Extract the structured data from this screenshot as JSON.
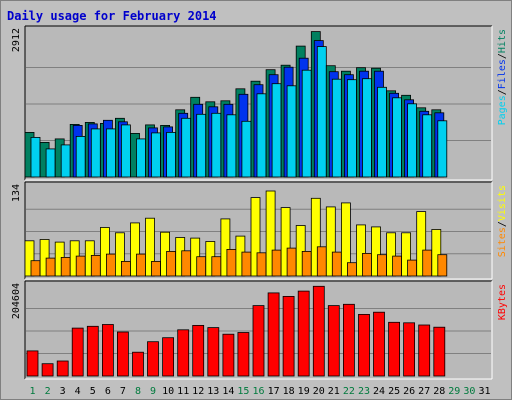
{
  "chart_data": {
    "type": "bar",
    "title": "Daily usage for February 2014",
    "colors": {
      "background": "#c0c0c0",
      "panel": "#b9b9b9",
      "title": "#0000cc",
      "pages": "#00d0f0",
      "files": "#0033ee",
      "hits": "#008060",
      "visits": "#ffff00",
      "sites": "#ff8800",
      "kbytes": "#ff0000",
      "weekend_day": "#007a3d",
      "weekday": "#000000"
    },
    "x": [
      "1",
      "2",
      "3",
      "4",
      "5",
      "6",
      "7",
      "8",
      "9",
      "10",
      "11",
      "12",
      "13",
      "14",
      "15",
      "16",
      "17",
      "18",
      "19",
      "20",
      "21",
      "22",
      "23",
      "24",
      "25",
      "26",
      "27",
      "28",
      "29",
      "30",
      "31"
    ],
    "weekend_days": [
      "1",
      "2",
      "8",
      "9",
      "15",
      "16",
      "22",
      "23",
      "29",
      "30"
    ],
    "panels": [
      {
        "max_label": "2912",
        "ylim": [
          0,
          2912
        ],
        "legend": [
          "Pages",
          "Files",
          "Hits"
        ],
        "series": [
          {
            "name": "Hits",
            "color": "#008060",
            "values": [
              890,
              690,
              760,
              1050,
              1090,
              1070,
              1170,
              870,
              1040,
              1030,
              1340,
              1590,
              1500,
              1520,
              1760,
              1910,
              2140,
              2230,
              2610,
              2900,
              2220,
              2110,
              2180,
              2170,
              1720,
              1630,
              1380,
              1340,
              0,
              0,
              0
            ]
          },
          {
            "name": "Files",
            "color": "#0033ee",
            "values": [
              0,
              0,
              0,
              1030,
              1060,
              1130,
              1100,
              0,
              980,
              1000,
              1270,
              1450,
              1400,
              1450,
              1650,
              1840,
              2040,
              2190,
              2370,
              2720,
              2100,
              2040,
              2110,
              2110,
              1670,
              1540,
              1310,
              1280,
              0,
              0,
              0
            ]
          },
          {
            "name": "Pages",
            "color": "#00d0f0",
            "values": [
              790,
              560,
              640,
              810,
              960,
              960,
              1040,
              760,
              880,
              890,
              1170,
              1250,
              1270,
              1240,
              1110,
              1660,
              1860,
              1820,
              2130,
              2600,
              1950,
              1940,
              1960,
              1790,
              1580,
              1460,
              1240,
              1120,
              0,
              0,
              0
            ]
          }
        ]
      },
      {
        "max_label": "134",
        "ylim": [
          0,
          134
        ],
        "legend": [
          "Sites",
          "Visits"
        ],
        "series": [
          {
            "name": "Visits",
            "color": "#ffff00",
            "values": [
              53,
              55,
              51,
              53,
              53,
              73,
              65,
              80,
              87,
              66,
              58,
              57,
              52,
              86,
              60,
              118,
              128,
              103,
              76,
              117,
              104,
              110,
              77,
              74,
              65,
              65,
              97,
              70,
              0,
              0,
              0
            ]
          },
          {
            "name": "Sites",
            "color": "#ff8800",
            "values": [
              23,
              27,
              28,
              30,
              31,
              33,
              22,
              33,
              22,
              37,
              38,
              29,
              29,
              40,
              36,
              35,
              39,
              42,
              37,
              44,
              36,
              20,
              34,
              32,
              30,
              24,
              39,
              32,
              0,
              0,
              0
            ]
          }
        ]
      },
      {
        "max_label": "204604",
        "ylim": [
          0,
          204604
        ],
        "legend": [
          "KBytes"
        ],
        "series": [
          {
            "name": "KBytes",
            "color": "#ff0000",
            "values": [
              57000,
              28000,
              34000,
              109000,
              113000,
              117000,
              100000,
              54000,
              78000,
              87000,
              105000,
              115000,
              110000,
              95000,
              99000,
              160000,
              189000,
              181000,
              193000,
              204000,
              160000,
              163000,
              140000,
              145000,
              122000,
              121000,
              116000,
              111000,
              0,
              0,
              0
            ]
          }
        ]
      }
    ]
  }
}
